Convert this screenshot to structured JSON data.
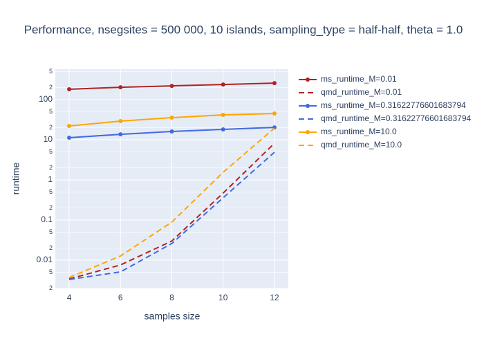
{
  "chart_data": {
    "type": "line",
    "title": "Performance, nsegsites = 500 000, 10 islands, sampling_type = half-half, theta = 1.0",
    "x_label": "samples size",
    "y_label": "runtime",
    "x": [
      4,
      6,
      8,
      10,
      12
    ],
    "xlim": [
      3.46,
      12.54
    ],
    "xticks": [
      4,
      6,
      8,
      10,
      12
    ],
    "ylim": [
      0.00196,
      575
    ],
    "y_log": true,
    "grid": true,
    "yticks": [
      {
        "value": 0.002,
        "label": "2"
      },
      {
        "value": 0.005,
        "label": "5"
      },
      0.01,
      {
        "value": 0.02,
        "label": "2"
      },
      {
        "value": 0.05,
        "label": "5"
      },
      0.1,
      {
        "value": 0.2,
        "label": "2"
      },
      {
        "value": 0.5,
        "label": "5"
      },
      1,
      {
        "value": 2,
        "label": "2"
      },
      {
        "value": 5,
        "label": "5"
      },
      10,
      {
        "value": 20,
        "label": "2"
      },
      {
        "value": 50,
        "label": "5"
      },
      100,
      {
        "value": 200,
        "label": "2"
      },
      {
        "value": 500,
        "label": "5"
      }
    ],
    "legend_position": "right",
    "series": [
      {
        "name": "ms_runtime_M=0.01",
        "color": "#b22222",
        "line_style": "solid",
        "markers": true,
        "values": [
          182,
          204,
          221,
          239,
          259
        ]
      },
      {
        "name": "qmd_runtime_M=0.01",
        "color": "#b22222",
        "line_style": "dash",
        "markers": false,
        "values": [
          0.0034,
          0.0076,
          0.03,
          0.47,
          8.2
        ]
      },
      {
        "name": "ms_runtime_M=0.31622776601683794",
        "color": "#4169e1",
        "line_style": "solid",
        "markers": true,
        "values": [
          11.3,
          13.7,
          16.1,
          18.2,
          20.4
        ]
      },
      {
        "name": "qmd_runtime_M=0.31622776601683794",
        "color": "#4169e1",
        "line_style": "dash",
        "markers": false,
        "values": [
          0.0033,
          0.0051,
          0.026,
          0.36,
          4.9
        ]
      },
      {
        "name": "ms_runtime_M=10.0",
        "color": "#ffa500",
        "line_style": "solid",
        "markers": true,
        "values": [
          22.1,
          29.3,
          35.6,
          41.8,
          45.2
        ]
      },
      {
        "name": "qmd_runtime_M=10.0",
        "color": "#ffa500",
        "line_style": "dash",
        "markers": false,
        "values": [
          0.0037,
          0.0127,
          0.089,
          1.55,
          19.6
        ]
      }
    ]
  }
}
